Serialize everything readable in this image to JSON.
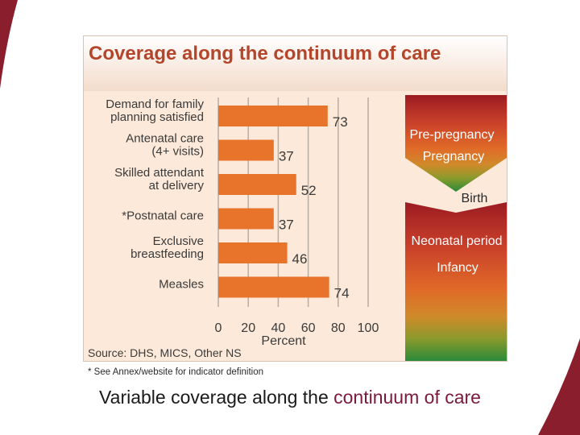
{
  "chart_data": {
    "type": "bar",
    "orientation": "horizontal",
    "title": "Coverage along the continuum of care",
    "categories": [
      [
        "Demand for family",
        "planning satisfied"
      ],
      [
        "Antenatal care",
        "(4+ visits)"
      ],
      [
        "Skilled attendant",
        "at delivery"
      ],
      [
        "*Postnatal care"
      ],
      [
        "Exclusive",
        "breastfeeding"
      ],
      [
        "Measles"
      ]
    ],
    "values": [
      73,
      37,
      52,
      37,
      46,
      74
    ],
    "xlabel": "Percent",
    "xlim": [
      0,
      100
    ],
    "xticks": [
      0,
      20,
      40,
      60,
      80,
      100
    ],
    "bar_color": "#e8742c",
    "stages": [
      "Pre-pregnancy",
      "Pregnancy",
      "Birth",
      "Neonatal period",
      "Infancy"
    ],
    "source": "Source: DHS, MICS, Other NS",
    "footnote": "* See Annex/website for indicator definition"
  },
  "caption": {
    "text": "Variable coverage along the ",
    "highlight": "continuum of care"
  },
  "colors": {
    "accent": "#7b1a3a",
    "panel_bg": "#fce9d9",
    "title_color": "#b5452a"
  }
}
